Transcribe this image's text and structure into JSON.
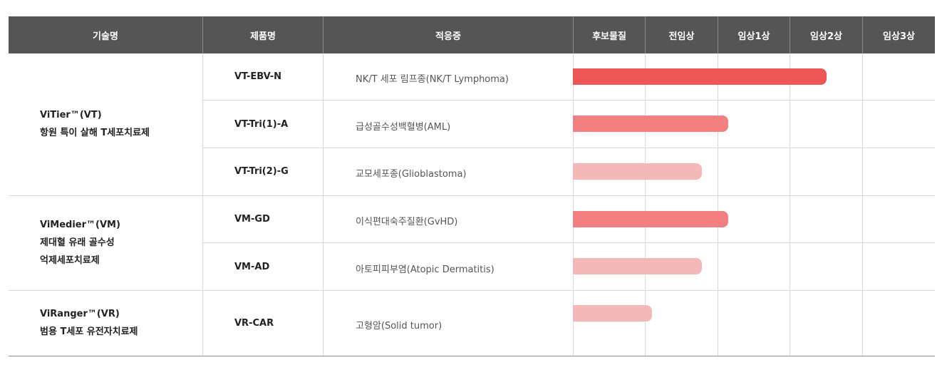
{
  "header": {
    "tech": "기술명",
    "product": "제품명",
    "indication": "적응증",
    "stages": [
      "후보물질",
      "전임상",
      "임상1상",
      "임상2상",
      "임상3상"
    ]
  },
  "groups": [
    {
      "line1": "ViTier™(VT)",
      "line2": "항원 특이 살해 T세포치료제",
      "line3": ""
    },
    {
      "line1": "ViMedier™(VM)",
      "line2": "제대혈 유래 골수성",
      "line3": "억제세포치료제"
    },
    {
      "line1": "ViRanger™(VR)",
      "line2": "범용 T세포 유전자치료제",
      "line3": ""
    }
  ],
  "rows": [
    {
      "product": "VT-EBV-N",
      "indication": "NK/T 세포 림프종(NK/T Lymphoma)",
      "progress_stages": 3.5,
      "color": "#ee5555"
    },
    {
      "product": "VT-Tri(1)-A",
      "indication": "급성골수성백혈병(AML)",
      "progress_stages": 2.15,
      "color": "#f38080"
    },
    {
      "product": "VT-Tri(2)-G",
      "indication": "교모세포종(Glioblastoma)",
      "progress_stages": 1.78,
      "color": "#f5b8b8"
    },
    {
      "product": "VM-GD",
      "indication": "이식편대숙주질환(GvHD)",
      "progress_stages": 2.15,
      "color": "#f38080"
    },
    {
      "product": "VM-AD",
      "indication": "아토피피부염(Atopic Dermatitis)",
      "progress_stages": 1.78,
      "color": "#f5b8b8"
    },
    {
      "product": "VR-CAR",
      "indication": "고형암(Solid tumor)",
      "progress_stages": 1.09,
      "color": "#f5b8b8"
    }
  ]
}
